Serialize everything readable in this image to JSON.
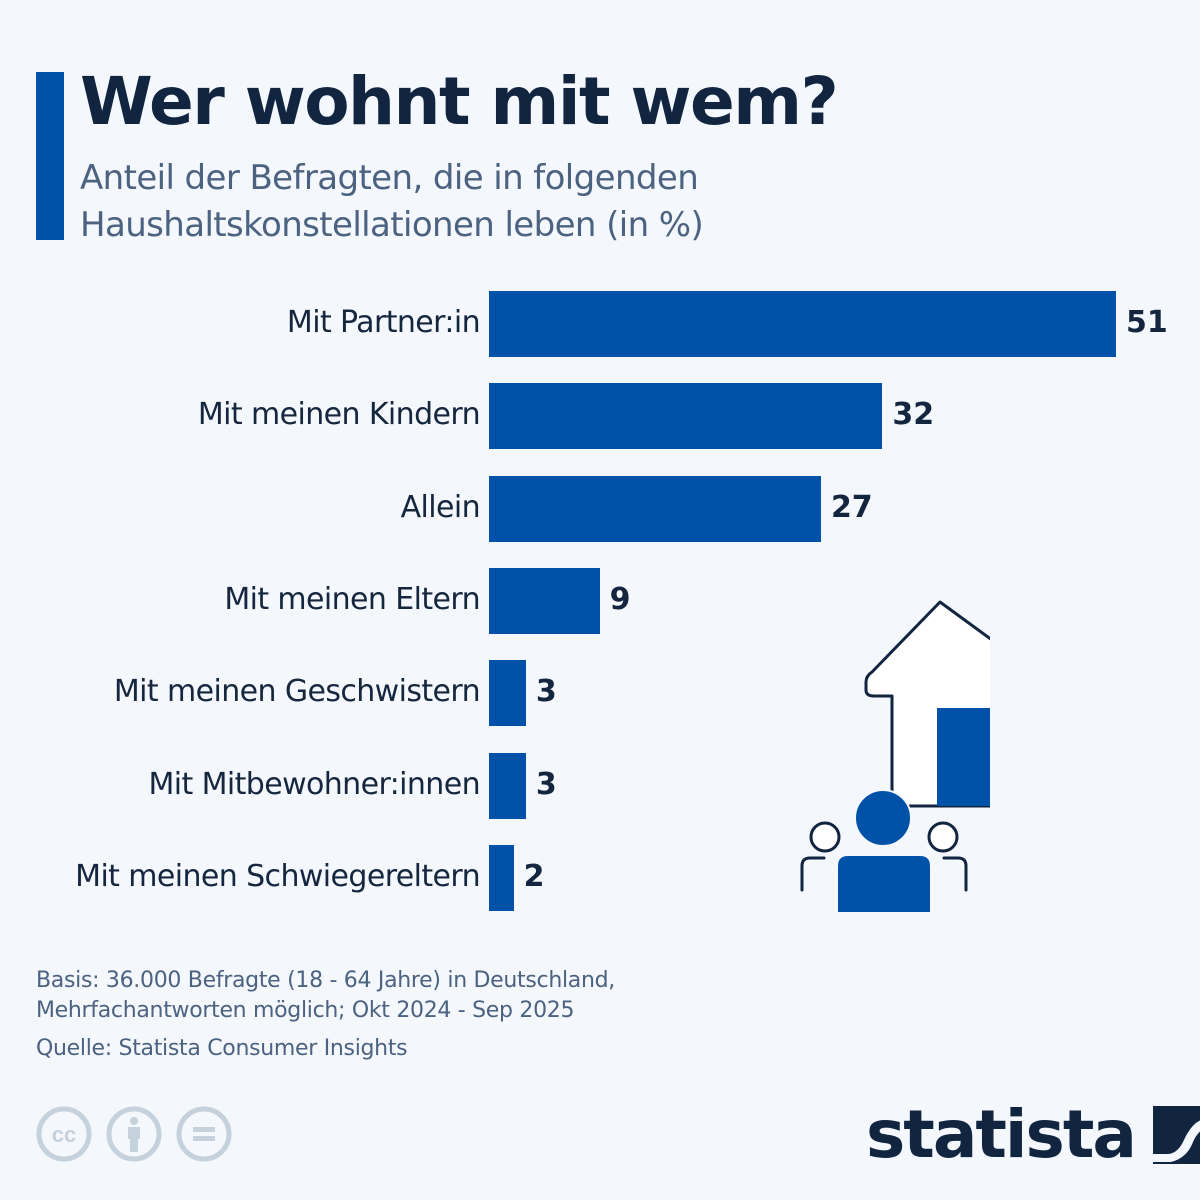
{
  "header": {
    "title": "Wer wohnt mit wem?",
    "subtitle": "Anteil der Befragten, die in folgenden Haushaltskonstellationen leben (in %)"
  },
  "chart_data": {
    "type": "bar",
    "orientation": "horizontal",
    "title": "Wer wohnt mit wem?",
    "subtitle": "Anteil der Befragten, die in folgenden Haushaltskonstellationen leben (in %)",
    "xlabel": "",
    "ylabel": "",
    "unit": "%",
    "categories": [
      "Mit Partner:in",
      "Mit meinen Kindern",
      "Allein",
      "Mit meinen Eltern",
      "Mit meinen Geschwistern",
      "Mit Mitbewohner:innen",
      "Mit meinen Schwiegereltern"
    ],
    "values": [
      51,
      32,
      27,
      9,
      3,
      3,
      2
    ],
    "xlim": [
      0,
      51
    ],
    "grid": false,
    "legend": "none",
    "bar_color": "#0052a8"
  },
  "footer": {
    "basis": "Basis: 36.000 Befragte (18 - 64 Jahre) in Deutschland,",
    "basis2": "Mehrfachantworten möglich; Okt 2024 - Sep 2025",
    "source": "Quelle: Statista Consumer Insights",
    "license_icons": [
      "creative-commons-icon",
      "attribution-icon",
      "no-derivatives-icon"
    ],
    "logo_text": "statista"
  },
  "illustration": {
    "icon": "house-with-people-icon"
  },
  "colors": {
    "accent": "#0052a8",
    "text_dark": "#112440",
    "text_muted": "#4b6281",
    "background": "#f4f7fb"
  }
}
